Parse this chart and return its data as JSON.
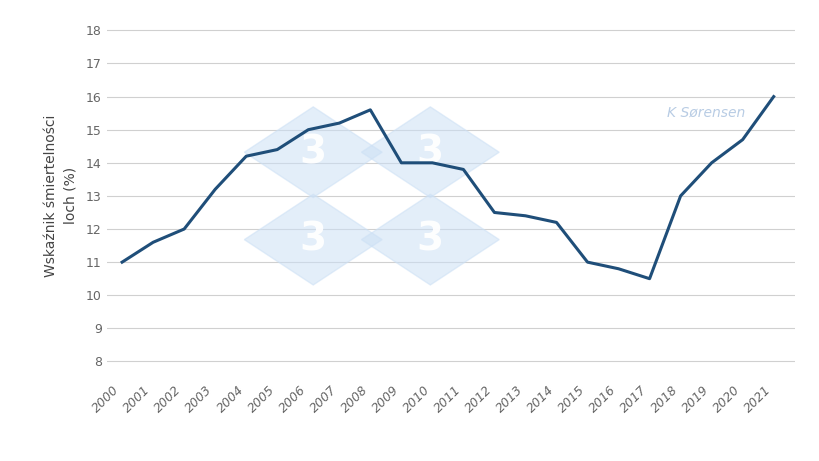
{
  "years": [
    2000,
    2001,
    2002,
    2003,
    2004,
    2005,
    2006,
    2007,
    2008,
    2009,
    2010,
    2011,
    2012,
    2013,
    2014,
    2015,
    2016,
    2017,
    2018,
    2019,
    2020,
    2021
  ],
  "values": [
    11.0,
    11.6,
    12.0,
    13.2,
    14.2,
    14.4,
    15.0,
    15.2,
    15.6,
    14.0,
    14.0,
    13.8,
    12.5,
    12.4,
    12.2,
    11.0,
    10.8,
    10.5,
    13.0,
    14.0,
    14.7,
    16.0
  ],
  "line_color": "#1f4e79",
  "line_width": 2.2,
  "ylabel": "Wskaźnik śmiertelności\nloch (%)",
  "ylabel_fontsize": 10,
  "yticks": [
    8,
    9,
    10,
    11,
    12,
    13,
    14,
    15,
    16,
    17,
    18
  ],
  "ylim": [
    7.5,
    18.5
  ],
  "xlim": [
    1999.5,
    2021.7
  ],
  "tick_fontsize": 9,
  "grid_color": "#d0d0d0",
  "bg_color": "#ffffff",
  "watermark_text": "K Sørensen",
  "watermark_color": "#b8cce4",
  "watermark_fontsize": 10
}
